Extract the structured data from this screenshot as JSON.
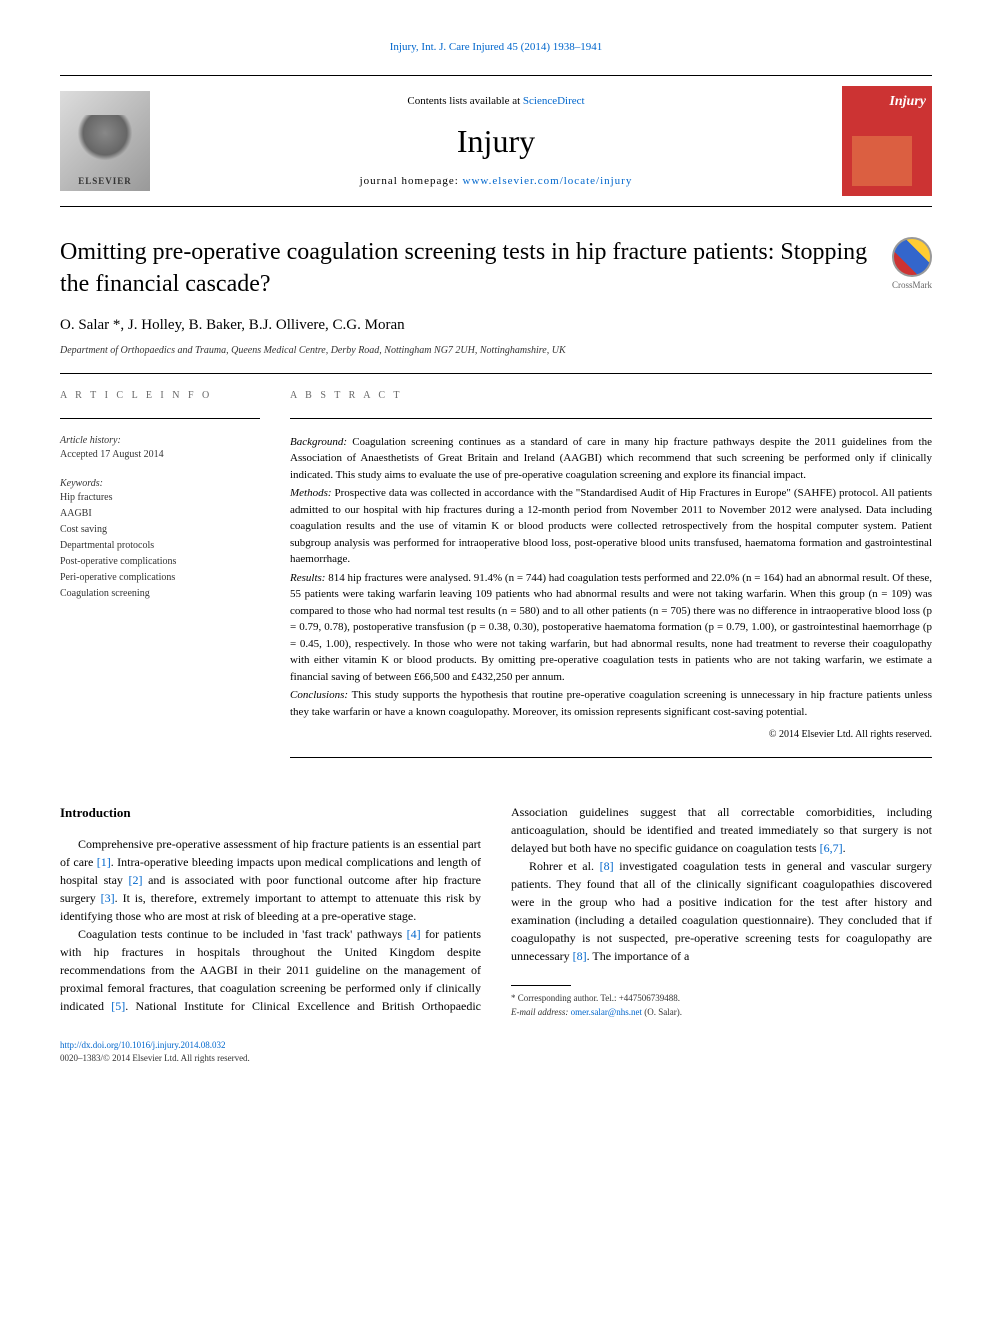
{
  "header": {
    "citation": "Injury, Int. J. Care Injured 45 (2014) 1938–1941"
  },
  "masthead": {
    "contents_prefix": "Contents lists available at ",
    "contents_link": "ScienceDirect",
    "journal_name": "Injury",
    "homepage_prefix": "journal homepage: ",
    "homepage_link": "www.elsevier.com/locate/injury",
    "elsevier_text": "ELSEVIER",
    "cover_text": "Injury"
  },
  "crossmark": {
    "label": "CrossMark"
  },
  "title": "Omitting pre-operative coagulation screening tests in hip fracture patients: Stopping the financial cascade?",
  "authors": "O. Salar *, J. Holley, B. Baker, B.J. Ollivere, C.G. Moran",
  "affiliation": "Department of Orthopaedics and Trauma, Queens Medical Centre, Derby Road, Nottingham NG7 2UH, Nottinghamshire, UK",
  "info": {
    "section_label": "A R T I C L E   I N F O",
    "history_label": "Article history:",
    "accepted": "Accepted 17 August 2014",
    "keywords_label": "Keywords:",
    "keywords": [
      "Hip fractures",
      "AAGBI",
      "Cost saving",
      "Departmental protocols",
      "Post-operative complications",
      "Peri-operative complications",
      "Coagulation screening"
    ]
  },
  "abstract": {
    "section_label": "A B S T R A C T",
    "background_label": "Background:",
    "background": " Coagulation screening continues as a standard of care in many hip fracture pathways despite the 2011 guidelines from the Association of Anaesthetists of Great Britain and Ireland (AAGBI) which recommend that such screening be performed only if clinically indicated. This study aims to evaluate the use of pre-operative coagulation screening and explore its financial impact.",
    "methods_label": "Methods:",
    "methods": " Prospective data was collected in accordance with the \"Standardised Audit of Hip Fractures in Europe\" (SAHFE) protocol. All patients admitted to our hospital with hip fractures during a 12-month period from November 2011 to November 2012 were analysed. Data including coagulation results and the use of vitamin K or blood products were collected retrospectively from the hospital computer system. Patient subgroup analysis was performed for intraoperative blood loss, post-operative blood units transfused, haematoma formation and gastrointestinal haemorrhage.",
    "results_label": "Results:",
    "results": " 814 hip fractures were analysed. 91.4% (n = 744) had coagulation tests performed and 22.0% (n = 164) had an abnormal result. Of these, 55 patients were taking warfarin leaving 109 patients who had abnormal results and were not taking warfarin. When this group (n = 109) was compared to those who had normal test results (n = 580) and to all other patients (n = 705) there was no difference in intraoperative blood loss (p = 0.79, 0.78), postoperative transfusion (p = 0.38, 0.30), postoperative haematoma formation (p = 0.79, 1.00), or gastrointestinal haemorrhage (p = 0.45, 1.00), respectively. In those who were not taking warfarin, but had abnormal results, none had treatment to reverse their coagulopathy with either vitamin K or blood products. By omitting pre-operative coagulation tests in patients who are not taking warfarin, we estimate a financial saving of between £66,500 and £432,250 per annum.",
    "conclusions_label": "Conclusions:",
    "conclusions": " This study supports the hypothesis that routine pre-operative coagulation screening is unnecessary in hip fracture patients unless they take warfarin or have a known coagulopathy. Moreover, its omission represents significant cost-saving potential.",
    "copyright": "© 2014 Elsevier Ltd. All rights reserved."
  },
  "body": {
    "intro_heading": "Introduction",
    "p1a": "Comprehensive pre-operative assessment of hip fracture patients is an essential part of care ",
    "p1_ref1": "[1]",
    "p1b": ". Intra-operative bleeding impacts upon medical complications and length of hospital stay ",
    "p1_ref2": "[2]",
    "p1c": " and is associated with poor functional outcome after hip fracture surgery ",
    "p1_ref3": "[3]",
    "p1d": ". It is, therefore, extremely important to attempt to attenuate this risk by identifying those who are most at risk of bleeding at a pre-operative stage.",
    "p2a": "Coagulation tests continue to be included in 'fast track' pathways ",
    "p2_ref4": "[4]",
    "p2b": " for patients with hip fractures in hospitals throughout the United Kingdom despite recommendations from the AAGBI in their 2011 guideline on the management of proximal femoral fractures, that coagulation screening be performed only if clinically indicated ",
    "p2_ref5": "[5]",
    "p2c": ". National Institute for Clinical Excellence and British Orthopaedic Association guidelines suggest that all correctable comorbidities, including anticoagulation, should be identified and treated immediately so that surgery is not delayed but both have no specific guidance on coagulation tests ",
    "p2_ref67": "[6,7]",
    "p2d": ".",
    "p3a": "Rohrer et al. ",
    "p3_ref8a": "[8]",
    "p3b": " investigated coagulation tests in general and vascular surgery patients. They found that all of the clinically significant coagulopathies discovered were in the group who had a positive indication for the test after history and examination (including a detailed coagulation questionnaire). They concluded that if coagulopathy is not suspected, pre-operative screening tests for coagulopathy are unnecessary ",
    "p3_ref8b": "[8]",
    "p3c": ". The importance of a"
  },
  "footnote": {
    "corr": "* Corresponding author. Tel.: +447506739488.",
    "email_label": "E-mail address: ",
    "email": "omer.salar@nhs.net",
    "email_suffix": " (O. Salar)."
  },
  "footer": {
    "doi": "http://dx.doi.org/10.1016/j.injury.2014.08.032",
    "issn_copy": "0020–1383/© 2014 Elsevier Ltd. All rights reserved."
  }
}
